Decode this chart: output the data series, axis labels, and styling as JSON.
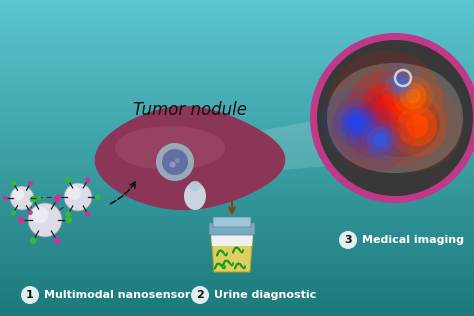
{
  "bg_top": "#5cc5d0",
  "bg_bottom": "#1a7878",
  "title_text": "Tumor nodule",
  "title_fontsize": 12,
  "title_color": "#111111",
  "label1_text": "Multimodal nanosensor",
  "label2_text": "Urine diagnostic",
  "label3_text": "Medical imaging",
  "label_fontsize": 8,
  "liver_color": "#8b3558",
  "liver_highlight": "#b05878",
  "urine_cup_yellow": "#ddd060",
  "urine_cup_cap": "#7aaac0",
  "scan_border": "#c03888",
  "scan_bg": "#383838",
  "nano_white": "#dcdce8",
  "nano_arm": "#222222",
  "nano_green": "#33bb33",
  "nano_pink": "#cc3399",
  "arrow_brown": "#8b4010",
  "beam_alpha": 0.15
}
